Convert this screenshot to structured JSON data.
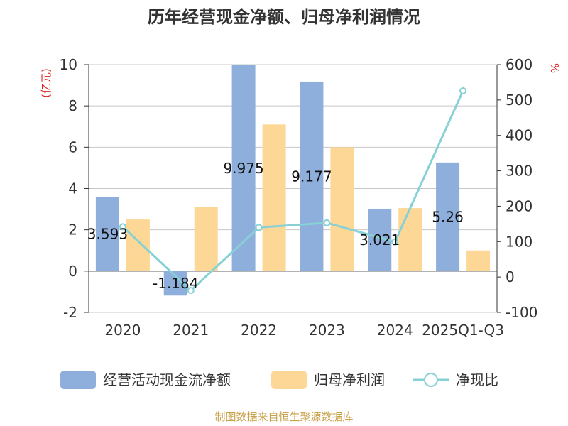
{
  "chart_data": {
    "type": "bar",
    "title": "历年经营现金净额、归母净利润情况",
    "categories": [
      "2020",
      "2021",
      "2022",
      "2023",
      "2024",
      "2025Q1-Q3"
    ],
    "left_axis": {
      "unit": "(亿元)",
      "ylim": [
        -2,
        10
      ],
      "ticks": [
        "-2",
        "0",
        "2",
        "4",
        "6",
        "8",
        "10"
      ]
    },
    "right_axis": {
      "unit": "%",
      "ylim": [
        -100,
        600
      ],
      "ticks": [
        "-100",
        "0",
        "100",
        "200",
        "300",
        "400",
        "500",
        "600"
      ]
    },
    "series": [
      {
        "name": "经营活动现金流净额",
        "type": "bar",
        "axis": "left",
        "color": "#8eaedb",
        "values": [
          3.593,
          -1.184,
          9.975,
          9.177,
          3.021,
          5.26
        ],
        "labels": [
          "3.593",
          "-1.184",
          "9.975",
          "9.177",
          "3.021",
          "5.26"
        ]
      },
      {
        "name": "归母净利润",
        "type": "bar",
        "axis": "left",
        "color": "#fdd796",
        "values": [
          2.5,
          3.1,
          7.1,
          6.0,
          3.05,
          1.0
        ]
      },
      {
        "name": "净现比",
        "type": "line",
        "axis": "right",
        "color": "#86d0d6",
        "values": [
          142,
          -38,
          140,
          153,
          99,
          526
        ]
      }
    ],
    "grid": true,
    "legend": "bottom"
  },
  "source": "制图数据来自恒生聚源数据库"
}
